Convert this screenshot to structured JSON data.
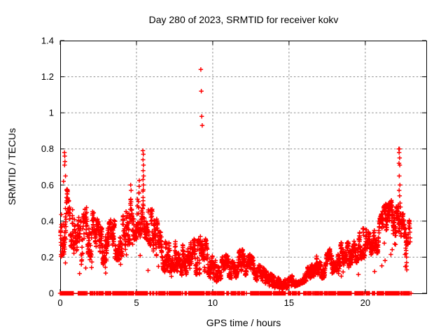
{
  "chart_data": {
    "type": "scatter",
    "title": "Day 280 of 2023, SRMTID for receiver kokv",
    "xlabel": "GPS time / hours",
    "ylabel": "SRMTID / TECUs",
    "xlim": [
      0,
      24
    ],
    "ylim": [
      0,
      1.4
    ],
    "xticks": [
      0,
      5,
      10,
      15,
      20
    ],
    "yticks": [
      0,
      0.2,
      0.4,
      0.6,
      0.8,
      1,
      1.2,
      1.4
    ],
    "grid": true,
    "legend": "none",
    "marker": {
      "shape": "plus",
      "color": "#ff0000",
      "size": 6.4,
      "stroke_width": 1.5
    },
    "axis_color": "#000000",
    "grid_color": "#8c8c8c",
    "background": "#ffffff",
    "series_name": "SRMTID",
    "data_start_hour": 0.02,
    "data_end_hour": 22.95,
    "samples_per_hour": 85,
    "extra_point_prob": 0.45,
    "dip_prob": 0.025,
    "seed": 1337,
    "band_envelope": [
      [
        0.0,
        0.2,
        0.62
      ],
      [
        0.3,
        0.22,
        0.6
      ],
      [
        0.6,
        0.28,
        0.55
      ],
      [
        1.0,
        0.2,
        0.48
      ],
      [
        1.4,
        0.15,
        0.42
      ],
      [
        1.8,
        0.22,
        0.5
      ],
      [
        2.2,
        0.18,
        0.45
      ],
      [
        2.6,
        0.15,
        0.38
      ],
      [
        3.0,
        0.17,
        0.36
      ],
      [
        3.4,
        0.2,
        0.42
      ],
      [
        3.8,
        0.18,
        0.38
      ],
      [
        4.2,
        0.22,
        0.45
      ],
      [
        4.6,
        0.28,
        0.52
      ],
      [
        5.0,
        0.3,
        0.58
      ],
      [
        5.4,
        0.32,
        0.72
      ],
      [
        5.8,
        0.28,
        0.5
      ],
      [
        6.2,
        0.22,
        0.44
      ],
      [
        6.6,
        0.15,
        0.35
      ],
      [
        7.0,
        0.1,
        0.28
      ],
      [
        7.4,
        0.13,
        0.33
      ],
      [
        7.8,
        0.1,
        0.26
      ],
      [
        8.2,
        0.1,
        0.28
      ],
      [
        8.6,
        0.12,
        0.3
      ],
      [
        9.0,
        0.1,
        0.3
      ],
      [
        9.4,
        0.12,
        0.33
      ],
      [
        9.8,
        0.08,
        0.24
      ],
      [
        10.2,
        0.06,
        0.18
      ],
      [
        10.6,
        0.08,
        0.2
      ],
      [
        11.0,
        0.09,
        0.22
      ],
      [
        11.4,
        0.08,
        0.2
      ],
      [
        11.8,
        0.1,
        0.24
      ],
      [
        12.2,
        0.1,
        0.25
      ],
      [
        12.6,
        0.08,
        0.2
      ],
      [
        13.0,
        0.06,
        0.16
      ],
      [
        13.5,
        0.04,
        0.13
      ],
      [
        14.0,
        0.03,
        0.1
      ],
      [
        14.5,
        0.02,
        0.08
      ],
      [
        15.0,
        0.03,
        0.09
      ],
      [
        15.5,
        0.04,
        0.11
      ],
      [
        16.0,
        0.06,
        0.15
      ],
      [
        16.5,
        0.09,
        0.2
      ],
      [
        16.9,
        0.1,
        0.21
      ],
      [
        17.2,
        0.08,
        0.17
      ],
      [
        17.6,
        0.1,
        0.24
      ],
      [
        18.0,
        0.12,
        0.27
      ],
      [
        18.4,
        0.13,
        0.28
      ],
      [
        18.8,
        0.14,
        0.28
      ],
      [
        19.2,
        0.15,
        0.3
      ],
      [
        19.6,
        0.18,
        0.36
      ],
      [
        20.0,
        0.2,
        0.36
      ],
      [
        20.4,
        0.18,
        0.32
      ],
      [
        20.8,
        0.22,
        0.38
      ],
      [
        21.2,
        0.3,
        0.48
      ],
      [
        21.6,
        0.32,
        0.52
      ],
      [
        22.0,
        0.32,
        0.5
      ],
      [
        22.3,
        0.28,
        0.48
      ],
      [
        22.6,
        0.26,
        0.42
      ],
      [
        22.95,
        0.28,
        0.4
      ]
    ],
    "outliers": [
      [
        0.22,
        0.62
      ],
      [
        0.28,
        0.78
      ],
      [
        0.3,
        0.76
      ],
      [
        0.31,
        0.73
      ],
      [
        0.29,
        0.71
      ],
      [
        0.35,
        0.65
      ],
      [
        4.62,
        0.6
      ],
      [
        4.65,
        0.57
      ],
      [
        5.42,
        0.79
      ],
      [
        5.45,
        0.77
      ],
      [
        5.43,
        0.74
      ],
      [
        5.46,
        0.71
      ],
      [
        5.44,
        0.68
      ],
      [
        5.47,
        0.65
      ],
      [
        5.43,
        0.63
      ],
      [
        5.45,
        0.6
      ],
      [
        9.22,
        1.24
      ],
      [
        9.25,
        1.12
      ],
      [
        9.28,
        0.98
      ],
      [
        9.31,
        0.93
      ],
      [
        22.2,
        0.8
      ],
      [
        22.24,
        0.8
      ],
      [
        22.22,
        0.78
      ],
      [
        22.25,
        0.75
      ],
      [
        22.21,
        0.72
      ],
      [
        22.26,
        0.71
      ],
      [
        22.23,
        0.65
      ],
      [
        22.27,
        0.6
      ],
      [
        22.22,
        0.57
      ],
      [
        22.25,
        0.54
      ],
      [
        22.28,
        0.5
      ],
      [
        22.65,
        0.25
      ],
      [
        22.68,
        0.22
      ],
      [
        22.7,
        0.2
      ],
      [
        22.71,
        0.17
      ],
      [
        22.69,
        0.15
      ],
      [
        22.72,
        0.13
      ]
    ],
    "zero_row": {
      "y": 0,
      "step_hours": 0.02,
      "off_toggle_prob": 0.12,
      "on_toggle_prob": 0.35
    }
  }
}
